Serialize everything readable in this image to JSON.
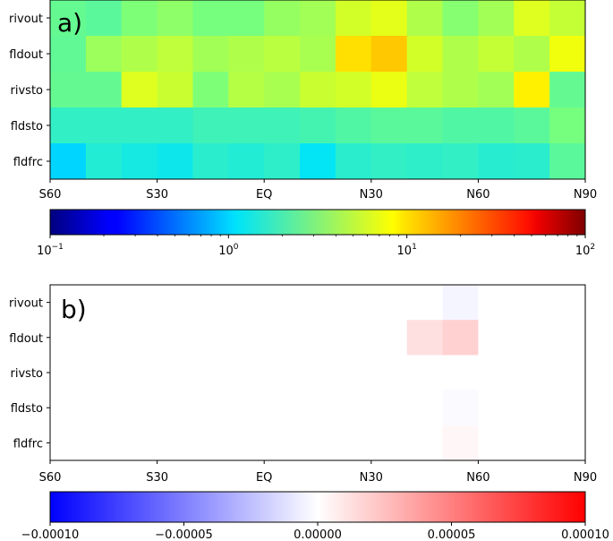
{
  "chart_data": [
    {
      "type": "heatmap",
      "panel_label": "a)",
      "rows": [
        "rivout",
        "fldout",
        "rivsto",
        "fldsto",
        "fldfrc"
      ],
      "x_tick_labels": [
        "S60",
        "S30",
        "EQ",
        "N30",
        "N60",
        "N90"
      ],
      "xlim": [
        -60,
        90
      ],
      "column_bin_width": 10,
      "color_scale": "log",
      "colormap": "jet",
      "colorbar": {
        "range": [
          0.1,
          100
        ],
        "ticks": [
          {
            "value": 0.1,
            "base": "10",
            "exp": "−1"
          },
          {
            "value": 1,
            "base": "10",
            "exp": "0"
          },
          {
            "value": 10,
            "base": "10",
            "exp": "1"
          },
          {
            "value": 100,
            "base": "10",
            "exp": "2"
          }
        ]
      },
      "values": [
        [
          2.6,
          2.4,
          3.2,
          3.6,
          3.0,
          3.0,
          3.8,
          4.2,
          6.0,
          6.8,
          4.6,
          3.4,
          4.2,
          6.5,
          5.4
        ],
        [
          2.5,
          4.0,
          4.6,
          5.2,
          4.2,
          4.6,
          5.0,
          4.4,
          10.0,
          12.0,
          6.0,
          4.6,
          5.4,
          4.6,
          7.5
        ],
        [
          2.6,
          2.6,
          6.5,
          5.6,
          3.2,
          4.8,
          4.4,
          5.6,
          6.0,
          7.2,
          5.2,
          4.6,
          4.2,
          9.0,
          2.6
        ],
        [
          1.7,
          1.7,
          1.7,
          1.7,
          1.9,
          1.9,
          1.9,
          2.0,
          2.2,
          2.4,
          2.4,
          2.2,
          2.2,
          2.4,
          3.0
        ],
        [
          1.0,
          1.5,
          1.35,
          1.25,
          1.6,
          1.5,
          1.65,
          1.15,
          1.6,
          1.7,
          1.65,
          1.7,
          1.55,
          1.6,
          2.4
        ]
      ]
    },
    {
      "type": "heatmap",
      "panel_label": "b)",
      "rows": [
        "rivout",
        "fldout",
        "rivsto",
        "fldsto",
        "fldfrc"
      ],
      "x_tick_labels": [
        "S60",
        "S30",
        "EQ",
        "N30",
        "N60",
        "N90"
      ],
      "xlim": [
        -60,
        90
      ],
      "column_bin_width": 10,
      "color_scale": "linear",
      "colormap": "bwr",
      "colorbar": {
        "range": [
          -0.0001,
          0.0001
        ],
        "tick_values": [
          -0.0001,
          -5e-05,
          0,
          5e-05,
          0.0001
        ],
        "tick_labels": [
          "−0.00010",
          "−0.00005",
          "0.00000",
          "0.00005",
          "0.00010"
        ]
      },
      "values": [
        [
          0,
          0,
          0,
          0,
          0,
          0,
          0,
          0,
          0,
          0,
          0,
          -4e-06,
          0,
          0,
          0
        ],
        [
          0,
          0,
          0,
          0,
          0,
          0,
          0,
          0,
          0,
          0,
          1.2e-05,
          1.8e-05,
          0,
          0,
          0
        ],
        [
          0,
          0,
          0,
          0,
          0,
          0,
          0,
          0,
          0,
          0,
          0,
          0,
          0,
          0,
          0
        ],
        [
          0,
          0,
          0,
          0,
          0,
          0,
          0,
          0,
          0,
          0,
          0,
          -2e-06,
          0,
          0,
          0
        ],
        [
          0,
          0,
          0,
          0,
          0,
          0,
          0,
          0,
          0,
          0,
          0,
          3e-06,
          0,
          0,
          0
        ]
      ]
    }
  ]
}
